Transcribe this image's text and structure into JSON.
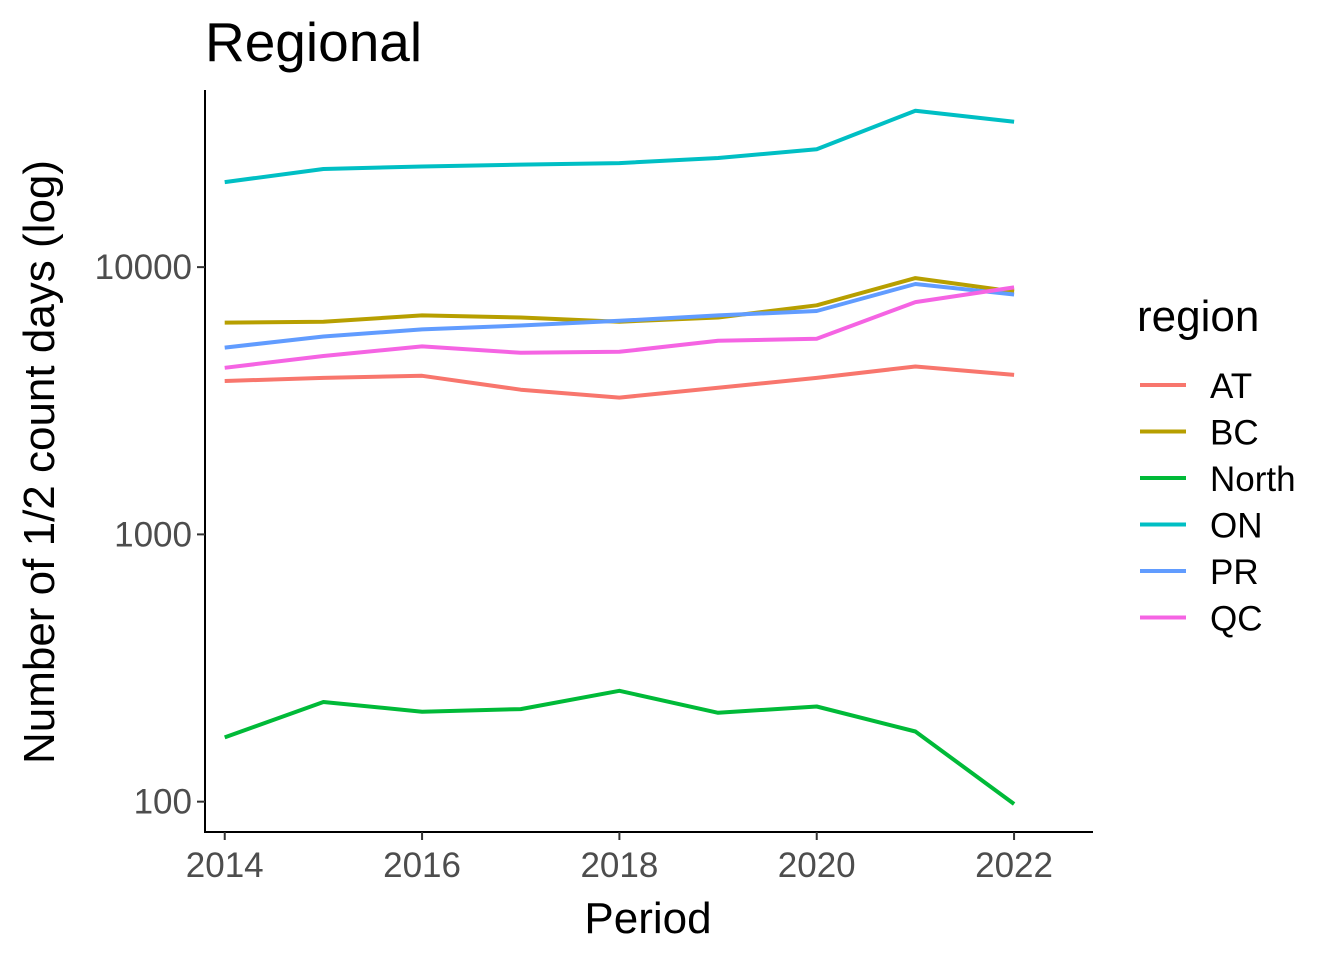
{
  "chart_data": {
    "type": "line",
    "title": "Regional",
    "xlabel": "Period",
    "ylabel": "Number of 1/2 count days (log)",
    "yscale": "log10",
    "xlim": [
      2013.8,
      2022.8
    ],
    "ylim": [
      77,
      46000
    ],
    "x_ticks": [
      2014,
      2016,
      2018,
      2020,
      2022
    ],
    "x_tick_labels": [
      "2014",
      "2016",
      "2018",
      "2020",
      "2022"
    ],
    "y_ticks": [
      100,
      1000,
      10000
    ],
    "y_tick_labels": [
      "100",
      "1000",
      "10000"
    ],
    "grid": false,
    "legend": {
      "title": "region",
      "position": "right"
    },
    "x": [
      2014,
      2015,
      2016,
      2017,
      2018,
      2019,
      2020,
      2021,
      2022
    ],
    "series": [
      {
        "name": "AT",
        "color": "#F8766D",
        "values": [
          3750,
          3850,
          3920,
          3480,
          3250,
          3540,
          3850,
          4250,
          3950
        ]
      },
      {
        "name": "BC",
        "color": "#B79F00",
        "values": [
          6200,
          6250,
          6600,
          6480,
          6250,
          6480,
          7200,
          9100,
          8100
        ]
      },
      {
        "name": "North",
        "color": "#00BA38",
        "values": [
          174,
          236,
          217,
          222,
          260,
          215,
          227,
          183,
          98
        ]
      },
      {
        "name": "ON",
        "color": "#00BFC4",
        "values": [
          20800,
          23300,
          23800,
          24200,
          24500,
          25600,
          27600,
          38500,
          35000
        ]
      },
      {
        "name": "PR",
        "color": "#619CFF",
        "values": [
          5000,
          5500,
          5850,
          6050,
          6300,
          6600,
          6850,
          8650,
          7900
        ]
      },
      {
        "name": "QC",
        "color": "#F564E3",
        "values": [
          4200,
          4650,
          5050,
          4780,
          4820,
          5300,
          5400,
          7400,
          8400
        ]
      }
    ]
  }
}
